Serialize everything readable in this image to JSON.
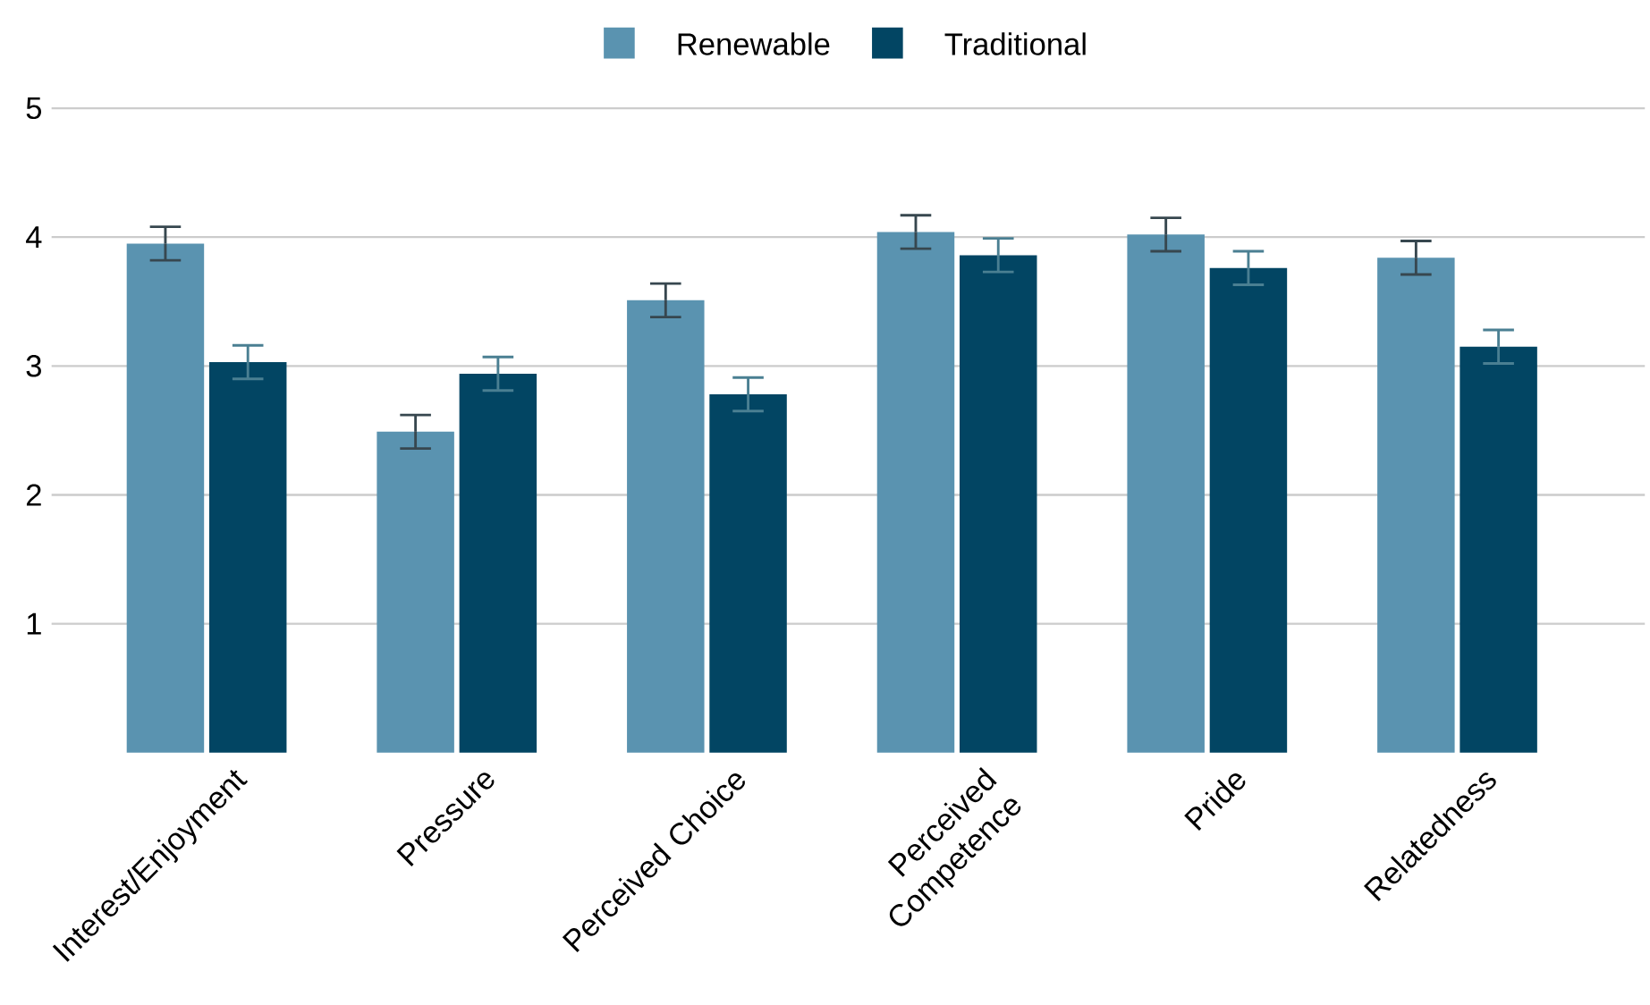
{
  "chart_data": {
    "type": "bar",
    "categories": [
      "Interest/Enjoyment",
      "Pressure",
      "Perceived Choice",
      "Perceived Competence",
      "Pride",
      "Relatedness"
    ],
    "series": [
      {
        "name": "Renewable",
        "color": "#5a93b0",
        "values": [
          3.95,
          2.49,
          3.51,
          4.04,
          4.02,
          3.84
        ],
        "errors": [
          0.13,
          0.13,
          0.13,
          0.13,
          0.13,
          0.13
        ]
      },
      {
        "name": "Traditional",
        "color": "#024563",
        "values": [
          3.03,
          2.94,
          2.78,
          3.86,
          3.76,
          3.15
        ],
        "errors": [
          0.13,
          0.13,
          0.13,
          0.13,
          0.13,
          0.13
        ]
      }
    ],
    "ylim": [
      0,
      5
    ],
    "yticks": [
      1,
      2,
      3,
      4,
      5
    ],
    "grid": "y",
    "legend": "top"
  }
}
